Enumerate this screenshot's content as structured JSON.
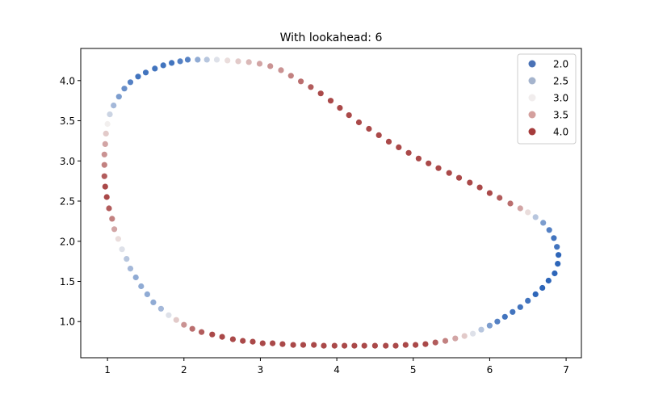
{
  "chart_data": {
    "type": "scatter",
    "title": "With lookahead: 6",
    "xlabel": "",
    "ylabel": "",
    "xlim": [
      0.65,
      7.2
    ],
    "ylim": [
      0.55,
      4.4
    ],
    "xticks": [
      1,
      2,
      3,
      4,
      5,
      6,
      7
    ],
    "yticks": [
      1.0,
      1.5,
      2.0,
      2.5,
      3.0,
      3.5,
      4.0
    ],
    "ytick_labels": [
      "1.0",
      "1.5",
      "2.0",
      "2.5",
      "3.0",
      "3.5",
      "4.0"
    ],
    "grid": false,
    "legend_position": "top-right",
    "legend": [
      {
        "label": "2.0",
        "color": "#4a72b6"
      },
      {
        "label": "2.5",
        "color": "#a5b4cd"
      },
      {
        "label": "3.0",
        "color": "#f1eded"
      },
      {
        "label": "3.5",
        "color": "#d4a09e"
      },
      {
        "label": "4.0",
        "color": "#a53c3c"
      }
    ],
    "color_scale": {
      "min": 2.0,
      "max": 4.0,
      "low": "#2e66b9",
      "mid": "#f2efee",
      "high": "#a23737"
    },
    "points": [
      {
        "x": 2.05,
        "y": 4.26,
        "v": 2.2
      },
      {
        "x": 1.95,
        "y": 4.24,
        "v": 2.2
      },
      {
        "x": 1.84,
        "y": 4.22,
        "v": 2.1
      },
      {
        "x": 1.73,
        "y": 4.19,
        "v": 2.1
      },
      {
        "x": 1.62,
        "y": 4.15,
        "v": 2.1
      },
      {
        "x": 1.5,
        "y": 4.1,
        "v": 2.1
      },
      {
        "x": 1.4,
        "y": 4.05,
        "v": 2.1
      },
      {
        "x": 1.3,
        "y": 3.98,
        "v": 2.2
      },
      {
        "x": 1.22,
        "y": 3.9,
        "v": 2.3
      },
      {
        "x": 1.15,
        "y": 3.8,
        "v": 2.4
      },
      {
        "x": 1.08,
        "y": 3.69,
        "v": 2.6
      },
      {
        "x": 1.03,
        "y": 3.58,
        "v": 2.8
      },
      {
        "x": 1.0,
        "y": 3.46,
        "v": 3.0
      },
      {
        "x": 0.98,
        "y": 3.34,
        "v": 3.2
      },
      {
        "x": 0.97,
        "y": 3.21,
        "v": 3.4
      },
      {
        "x": 0.96,
        "y": 3.08,
        "v": 3.5
      },
      {
        "x": 0.96,
        "y": 2.95,
        "v": 3.6
      },
      {
        "x": 0.96,
        "y": 2.81,
        "v": 3.8
      },
      {
        "x": 0.97,
        "y": 2.68,
        "v": 3.9
      },
      {
        "x": 0.99,
        "y": 2.55,
        "v": 3.9
      },
      {
        "x": 1.02,
        "y": 2.41,
        "v": 3.8
      },
      {
        "x": 1.06,
        "y": 2.28,
        "v": 3.6
      },
      {
        "x": 1.09,
        "y": 2.15,
        "v": 3.4
      },
      {
        "x": 1.14,
        "y": 2.03,
        "v": 3.1
      },
      {
        "x": 1.19,
        "y": 1.9,
        "v": 2.9
      },
      {
        "x": 1.25,
        "y": 1.78,
        "v": 2.7
      },
      {
        "x": 1.3,
        "y": 1.66,
        "v": 2.6
      },
      {
        "x": 1.37,
        "y": 1.55,
        "v": 2.5
      },
      {
        "x": 1.44,
        "y": 1.44,
        "v": 2.5
      },
      {
        "x": 1.52,
        "y": 1.34,
        "v": 2.5
      },
      {
        "x": 1.6,
        "y": 1.24,
        "v": 2.5
      },
      {
        "x": 1.7,
        "y": 1.16,
        "v": 2.6
      },
      {
        "x": 1.8,
        "y": 1.08,
        "v": 2.9
      },
      {
        "x": 1.9,
        "y": 1.02,
        "v": 3.2
      },
      {
        "x": 2.0,
        "y": 0.96,
        "v": 3.5
      },
      {
        "x": 2.11,
        "y": 0.91,
        "v": 3.7
      },
      {
        "x": 2.23,
        "y": 0.87,
        "v": 3.8
      },
      {
        "x": 2.37,
        "y": 0.84,
        "v": 3.9
      },
      {
        "x": 2.5,
        "y": 0.81,
        "v": 3.9
      },
      {
        "x": 2.64,
        "y": 0.78,
        "v": 3.9
      },
      {
        "x": 2.77,
        "y": 0.76,
        "v": 3.9
      },
      {
        "x": 2.9,
        "y": 0.75,
        "v": 3.9
      },
      {
        "x": 3.03,
        "y": 0.73,
        "v": 3.9
      },
      {
        "x": 3.16,
        "y": 0.73,
        "v": 3.9
      },
      {
        "x": 3.29,
        "y": 0.72,
        "v": 3.9
      },
      {
        "x": 3.43,
        "y": 0.71,
        "v": 3.9
      },
      {
        "x": 3.56,
        "y": 0.71,
        "v": 3.9
      },
      {
        "x": 3.7,
        "y": 0.71,
        "v": 3.9
      },
      {
        "x": 3.83,
        "y": 0.7,
        "v": 3.9
      },
      {
        "x": 3.97,
        "y": 0.7,
        "v": 3.9
      },
      {
        "x": 4.1,
        "y": 0.7,
        "v": 3.9
      },
      {
        "x": 4.23,
        "y": 0.7,
        "v": 3.9
      },
      {
        "x": 4.36,
        "y": 0.7,
        "v": 3.9
      },
      {
        "x": 4.5,
        "y": 0.7,
        "v": 3.9
      },
      {
        "x": 4.64,
        "y": 0.7,
        "v": 3.9
      },
      {
        "x": 4.77,
        "y": 0.7,
        "v": 3.9
      },
      {
        "x": 4.9,
        "y": 0.71,
        "v": 3.9
      },
      {
        "x": 5.03,
        "y": 0.71,
        "v": 3.9
      },
      {
        "x": 5.16,
        "y": 0.72,
        "v": 3.9
      },
      {
        "x": 5.29,
        "y": 0.74,
        "v": 3.8
      },
      {
        "x": 5.42,
        "y": 0.76,
        "v": 3.6
      },
      {
        "x": 5.55,
        "y": 0.79,
        "v": 3.4
      },
      {
        "x": 5.67,
        "y": 0.82,
        "v": 3.2
      },
      {
        "x": 5.78,
        "y": 0.85,
        "v": 2.9
      },
      {
        "x": 5.89,
        "y": 0.9,
        "v": 2.7
      },
      {
        "x": 6.0,
        "y": 0.95,
        "v": 2.4
      },
      {
        "x": 6.1,
        "y": 1.0,
        "v": 2.2
      },
      {
        "x": 6.2,
        "y": 1.06,
        "v": 2.1
      },
      {
        "x": 6.3,
        "y": 1.12,
        "v": 2.1
      },
      {
        "x": 6.4,
        "y": 1.18,
        "v": 2.1
      },
      {
        "x": 6.5,
        "y": 1.26,
        "v": 2.1
      },
      {
        "x": 6.6,
        "y": 1.34,
        "v": 2.0
      },
      {
        "x": 6.69,
        "y": 1.42,
        "v": 2.0
      },
      {
        "x": 6.77,
        "y": 1.51,
        "v": 2.0
      },
      {
        "x": 6.85,
        "y": 1.6,
        "v": 2.0
      },
      {
        "x": 6.89,
        "y": 1.72,
        "v": 2.0
      },
      {
        "x": 6.9,
        "y": 1.83,
        "v": 2.0
      },
      {
        "x": 6.88,
        "y": 1.93,
        "v": 2.1
      },
      {
        "x": 6.84,
        "y": 2.04,
        "v": 2.1
      },
      {
        "x": 6.78,
        "y": 2.14,
        "v": 2.2
      },
      {
        "x": 6.7,
        "y": 2.23,
        "v": 2.4
      },
      {
        "x": 6.6,
        "y": 2.3,
        "v": 2.7
      },
      {
        "x": 6.5,
        "y": 2.36,
        "v": 3.1
      },
      {
        "x": 6.4,
        "y": 2.41,
        "v": 3.4
      },
      {
        "x": 6.27,
        "y": 2.47,
        "v": 3.7
      },
      {
        "x": 6.13,
        "y": 2.54,
        "v": 3.8
      },
      {
        "x": 6.0,
        "y": 2.6,
        "v": 3.9
      },
      {
        "x": 5.87,
        "y": 2.67,
        "v": 3.9
      },
      {
        "x": 5.74,
        "y": 2.73,
        "v": 3.9
      },
      {
        "x": 5.6,
        "y": 2.79,
        "v": 3.9
      },
      {
        "x": 5.47,
        "y": 2.85,
        "v": 3.9
      },
      {
        "x": 5.33,
        "y": 2.91,
        "v": 3.9
      },
      {
        "x": 5.2,
        "y": 2.97,
        "v": 3.9
      },
      {
        "x": 5.07,
        "y": 3.03,
        "v": 3.9
      },
      {
        "x": 4.94,
        "y": 3.1,
        "v": 3.9
      },
      {
        "x": 4.81,
        "y": 3.17,
        "v": 3.9
      },
      {
        "x": 4.68,
        "y": 3.24,
        "v": 3.9
      },
      {
        "x": 4.55,
        "y": 3.32,
        "v": 3.9
      },
      {
        "x": 4.42,
        "y": 3.4,
        "v": 3.9
      },
      {
        "x": 4.29,
        "y": 3.48,
        "v": 3.9
      },
      {
        "x": 4.16,
        "y": 3.57,
        "v": 3.9
      },
      {
        "x": 4.04,
        "y": 3.66,
        "v": 3.9
      },
      {
        "x": 3.92,
        "y": 3.75,
        "v": 3.9
      },
      {
        "x": 3.79,
        "y": 3.84,
        "v": 3.9
      },
      {
        "x": 3.66,
        "y": 3.92,
        "v": 3.8
      },
      {
        "x": 3.53,
        "y": 3.99,
        "v": 3.7
      },
      {
        "x": 3.4,
        "y": 4.06,
        "v": 3.6
      },
      {
        "x": 3.27,
        "y": 4.13,
        "v": 3.5
      },
      {
        "x": 3.13,
        "y": 4.18,
        "v": 3.5
      },
      {
        "x": 2.99,
        "y": 4.21,
        "v": 3.4
      },
      {
        "x": 2.85,
        "y": 4.23,
        "v": 3.3
      },
      {
        "x": 2.71,
        "y": 4.24,
        "v": 3.2
      },
      {
        "x": 2.57,
        "y": 4.25,
        "v": 3.1
      },
      {
        "x": 2.43,
        "y": 4.26,
        "v": 2.9
      },
      {
        "x": 2.3,
        "y": 4.26,
        "v": 2.7
      },
      {
        "x": 2.18,
        "y": 4.26,
        "v": 2.5
      }
    ]
  }
}
